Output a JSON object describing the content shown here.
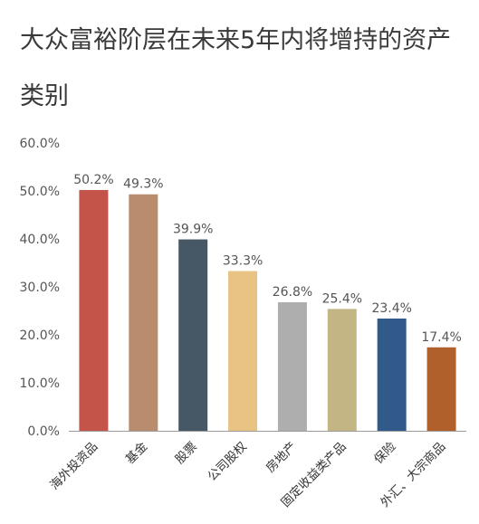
{
  "chart_data": {
    "type": "bar",
    "title": "大众富裕阶层在未来5年内将增持的资产类别",
    "categories": [
      "海外投资品",
      "基金",
      "股票",
      "公司股权",
      "房地产",
      "固定收益类产品",
      "保险",
      "外汇、大宗商品"
    ],
    "values": [
      50.2,
      49.3,
      39.9,
      33.3,
      26.8,
      25.4,
      23.4,
      17.4
    ],
    "value_labels": [
      "50.2%",
      "49.3%",
      "39.9%",
      "33.3%",
      "26.8%",
      "25.4%",
      "23.4%",
      "17.4%"
    ],
    "colors": [
      "#c4544a",
      "#b88c6d",
      "#465866",
      "#e8c384",
      "#aeaeae",
      "#c4b585",
      "#315a8a",
      "#b0602a"
    ],
    "yticks": [
      0,
      10,
      20,
      30,
      40,
      50,
      60
    ],
    "ytick_labels": [
      "0.0%",
      "10.0%",
      "20.0%",
      "30.0%",
      "40.0%",
      "50.0%",
      "60.0%"
    ],
    "ylim": [
      0,
      60
    ],
    "grid": false,
    "legend": "none",
    "xlabel": "",
    "ylabel": ""
  }
}
